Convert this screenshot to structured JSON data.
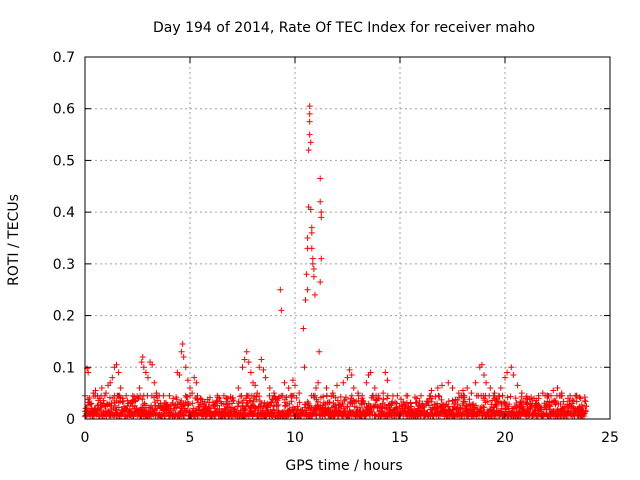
{
  "chart_data": {
    "type": "scatter",
    "title": "Day 194 of 2014, Rate Of TEC Index for receiver maho",
    "xlabel": "GPS time / hours",
    "ylabel": "ROTI / TECUs",
    "xlim": [
      0,
      25
    ],
    "ylim": [
      0,
      0.7
    ],
    "x_ticks": [
      0,
      5,
      10,
      15,
      20,
      25
    ],
    "x_tick_labels": [
      "0",
      "5",
      "10",
      "15",
      "20",
      "25"
    ],
    "y_ticks": [
      0,
      0.1,
      0.2,
      0.3,
      0.4,
      0.5,
      0.6,
      0.7
    ],
    "y_tick_labels": [
      "0",
      "0.1",
      "0.2",
      "0.3",
      "0.4",
      "0.5",
      "0.6",
      "0.7"
    ],
    "grid": true,
    "marker": "plus",
    "color": "#ff0000",
    "series": [
      {
        "name": "ROTI",
        "points": [
          [
            0.05,
            0.015
          ],
          [
            0.1,
            0.098
          ],
          [
            0.15,
            0.09
          ],
          [
            0.2,
            0.01
          ],
          [
            0.3,
            0.03
          ],
          [
            0.4,
            0.05
          ],
          [
            0.5,
            0.055
          ],
          [
            0.6,
            0.045
          ],
          [
            0.7,
            0.04
          ],
          [
            0.8,
            0.06
          ],
          [
            0.9,
            0.03
          ],
          [
            1.0,
            0.05
          ],
          [
            1.1,
            0.065
          ],
          [
            1.2,
            0.07
          ],
          [
            1.3,
            0.08
          ],
          [
            1.4,
            0.1
          ],
          [
            1.5,
            0.105
          ],
          [
            1.6,
            0.09
          ],
          [
            1.7,
            0.06
          ],
          [
            1.8,
            0.04
          ],
          [
            1.9,
            0.02
          ],
          [
            2.6,
            0.06
          ],
          [
            2.7,
            0.11
          ],
          [
            2.75,
            0.12
          ],
          [
            2.8,
            0.1
          ],
          [
            2.9,
            0.09
          ],
          [
            3.0,
            0.08
          ],
          [
            3.1,
            0.11
          ],
          [
            3.2,
            0.105
          ],
          [
            3.3,
            0.07
          ],
          [
            3.4,
            0.05
          ],
          [
            3.6,
            0.03
          ],
          [
            3.8,
            0.025
          ],
          [
            4.4,
            0.09
          ],
          [
            4.5,
            0.085
          ],
          [
            4.6,
            0.13
          ],
          [
            4.65,
            0.145
          ],
          [
            4.7,
            0.12
          ],
          [
            4.8,
            0.1
          ],
          [
            4.9,
            0.075
          ],
          [
            5.0,
            0.06
          ],
          [
            5.1,
            0.05
          ],
          [
            5.2,
            0.08
          ],
          [
            5.3,
            0.07
          ],
          [
            5.5,
            0.04
          ],
          [
            5.8,
            0.02
          ],
          [
            6.0,
            0.015
          ],
          [
            6.2,
            0.02
          ],
          [
            6.5,
            0.03
          ],
          [
            6.8,
            0.04
          ],
          [
            7.0,
            0.03
          ],
          [
            7.3,
            0.06
          ],
          [
            7.5,
            0.1
          ],
          [
            7.6,
            0.115
          ],
          [
            7.7,
            0.13
          ],
          [
            7.8,
            0.11
          ],
          [
            7.9,
            0.09
          ],
          [
            8.0,
            0.07
          ],
          [
            8.1,
            0.065
          ],
          [
            8.2,
            0.05
          ],
          [
            8.3,
            0.1
          ],
          [
            8.4,
            0.115
          ],
          [
            8.5,
            0.095
          ],
          [
            8.6,
            0.08
          ],
          [
            8.8,
            0.06
          ],
          [
            9.0,
            0.05
          ],
          [
            9.2,
            0.04
          ],
          [
            9.3,
            0.25
          ],
          [
            9.35,
            0.21
          ],
          [
            9.5,
            0.07
          ],
          [
            9.7,
            0.06
          ],
          [
            9.9,
            0.075
          ],
          [
            10.0,
            0.065
          ],
          [
            10.2,
            0.05
          ],
          [
            10.4,
            0.175
          ],
          [
            10.45,
            0.1
          ],
          [
            10.5,
            0.23
          ],
          [
            10.55,
            0.28
          ],
          [
            10.6,
            0.25
          ],
          [
            10.6,
            0.33
          ],
          [
            10.6,
            0.35
          ],
          [
            10.65,
            0.41
          ],
          [
            10.65,
            0.52
          ],
          [
            10.7,
            0.55
          ],
          [
            10.7,
            0.575
          ],
          [
            10.7,
            0.59
          ],
          [
            10.7,
            0.605
          ],
          [
            10.75,
            0.535
          ],
          [
            10.75,
            0.405
          ],
          [
            10.8,
            0.37
          ],
          [
            10.8,
            0.36
          ],
          [
            10.8,
            0.33
          ],
          [
            10.85,
            0.31
          ],
          [
            10.85,
            0.3
          ],
          [
            10.9,
            0.29
          ],
          [
            10.9,
            0.275
          ],
          [
            10.95,
            0.24
          ],
          [
            11.0,
            0.06
          ],
          [
            11.1,
            0.07
          ],
          [
            11.2,
            0.465
          ],
          [
            11.2,
            0.42
          ],
          [
            11.25,
            0.4
          ],
          [
            11.25,
            0.39
          ],
          [
            11.25,
            0.31
          ],
          [
            11.2,
            0.265
          ],
          [
            11.15,
            0.13
          ],
          [
            11.5,
            0.06
          ],
          [
            11.8,
            0.05
          ],
          [
            12.0,
            0.065
          ],
          [
            12.3,
            0.07
          ],
          [
            12.5,
            0.08
          ],
          [
            12.6,
            0.095
          ],
          [
            12.7,
            0.085
          ],
          [
            12.8,
            0.06
          ],
          [
            13.0,
            0.05
          ],
          [
            13.2,
            0.045
          ],
          [
            13.4,
            0.07
          ],
          [
            13.5,
            0.085
          ],
          [
            13.6,
            0.09
          ],
          [
            13.8,
            0.06
          ],
          [
            14.0,
            0.04
          ],
          [
            14.2,
            0.05
          ],
          [
            14.3,
            0.09
          ],
          [
            14.4,
            0.075
          ],
          [
            14.6,
            0.03
          ],
          [
            14.8,
            0.02
          ],
          [
            15.0,
            0.015
          ],
          [
            15.2,
            0.02
          ],
          [
            15.5,
            0.03
          ],
          [
            15.8,
            0.04
          ],
          [
            16.0,
            0.045
          ],
          [
            16.5,
            0.055
          ],
          [
            16.8,
            0.06
          ],
          [
            17.0,
            0.065
          ],
          [
            17.3,
            0.07
          ],
          [
            17.5,
            0.06
          ],
          [
            17.8,
            0.05
          ],
          [
            18.0,
            0.055
          ],
          [
            18.2,
            0.06
          ],
          [
            18.4,
            0.05
          ],
          [
            18.6,
            0.07
          ],
          [
            18.8,
            0.1
          ],
          [
            18.9,
            0.105
          ],
          [
            19.0,
            0.085
          ],
          [
            19.1,
            0.07
          ],
          [
            19.3,
            0.06
          ],
          [
            19.5,
            0.05
          ],
          [
            19.8,
            0.06
          ],
          [
            20.0,
            0.08
          ],
          [
            20.1,
            0.09
          ],
          [
            20.3,
            0.1
          ],
          [
            20.4,
            0.085
          ],
          [
            20.6,
            0.065
          ],
          [
            20.8,
            0.05
          ],
          [
            21.0,
            0.04
          ],
          [
            21.3,
            0.035
          ],
          [
            21.6,
            0.04
          ],
          [
            21.8,
            0.05
          ],
          [
            22.0,
            0.045
          ],
          [
            22.3,
            0.055
          ],
          [
            22.5,
            0.06
          ],
          [
            22.7,
            0.05
          ],
          [
            23.0,
            0.04
          ],
          [
            23.2,
            0.03
          ],
          [
            23.4,
            0.045
          ],
          [
            23.6,
            0.04
          ],
          [
            23.8,
            0.035
          ]
        ]
      }
    ],
    "dense_band": {
      "description": "continuous background noise",
      "x_range": [
        0,
        23.9
      ],
      "y_min": 0.005,
      "y_max": 0.045
    }
  }
}
